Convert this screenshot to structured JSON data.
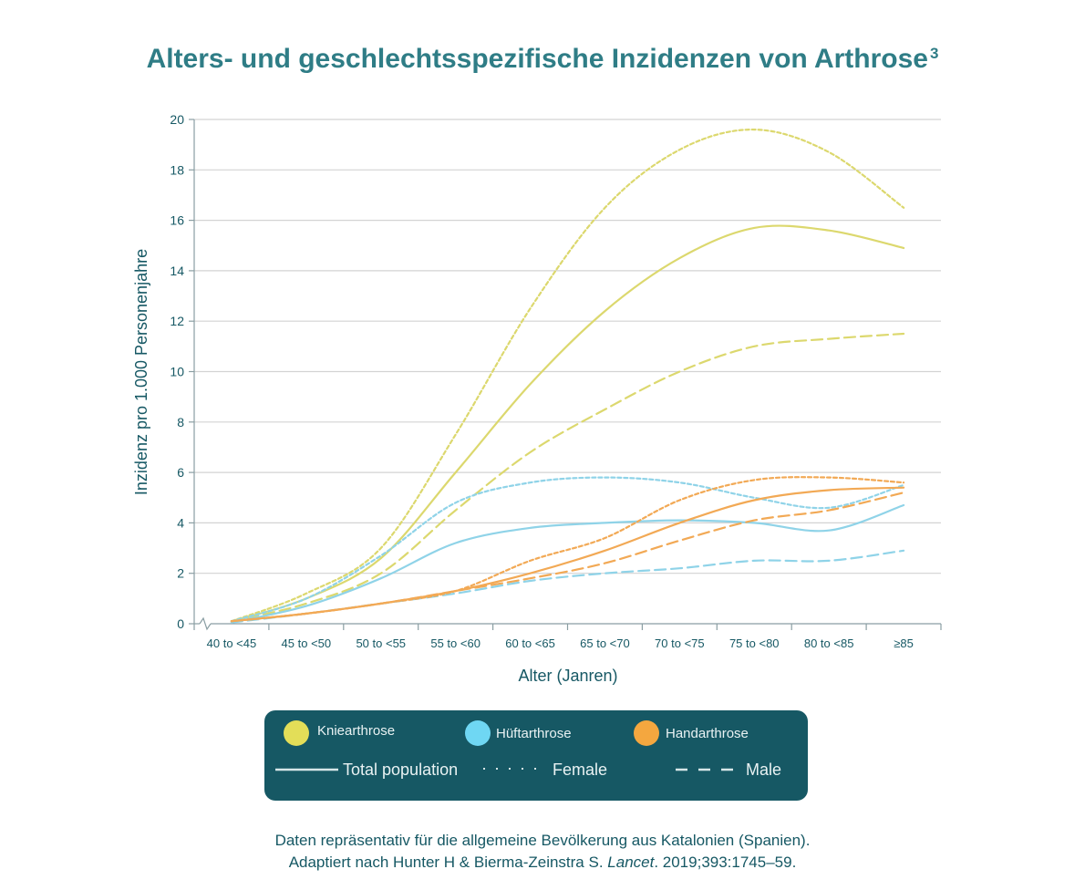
{
  "title": "Alters- und geschlechtsspezifische Inzidenzen von Arthrose",
  "title_superscript": "3",
  "chart_data": {
    "type": "line",
    "categories": [
      "40 to <45",
      "45 to <50",
      "50 to <55",
      "55 to <60",
      "60 to <65",
      "65 to <70",
      "70 to <75",
      "75 to <80",
      "80 to <85",
      "≥85"
    ],
    "xlabel": "Alter (Janren)",
    "ylabel": "Inzidenz pro 1.000 Personenjahre",
    "ylim": [
      0,
      20
    ],
    "yticks": [
      0,
      2,
      4,
      6,
      8,
      10,
      12,
      14,
      16,
      18,
      20
    ],
    "grid": true,
    "series": [
      {
        "group": "knee",
        "dash": "female",
        "color": "#dcd86e",
        "values": [
          0.1,
          1.2,
          3.0,
          7.5,
          12.5,
          16.5,
          18.8,
          19.6,
          18.7,
          16.5
        ]
      },
      {
        "group": "knee",
        "dash": "total",
        "color": "#dcd86e",
        "values": [
          0.1,
          1.0,
          2.6,
          6.0,
          9.5,
          12.4,
          14.5,
          15.7,
          15.6,
          14.9
        ]
      },
      {
        "group": "knee",
        "dash": "male",
        "color": "#dcd86e",
        "values": [
          0.1,
          0.8,
          2.0,
          4.5,
          6.8,
          8.5,
          10.0,
          11.0,
          11.3,
          11.5
        ]
      },
      {
        "group": "hip",
        "dash": "female",
        "color": "#8fd3e8",
        "values": [
          0.1,
          1.0,
          2.7,
          4.8,
          5.6,
          5.8,
          5.6,
          5.0,
          4.6,
          5.5
        ]
      },
      {
        "group": "hip",
        "dash": "total",
        "color": "#8fd3e8",
        "values": [
          0.05,
          0.7,
          1.8,
          3.2,
          3.8,
          4.0,
          4.1,
          4.0,
          3.7,
          4.7
        ]
      },
      {
        "group": "hip",
        "dash": "male",
        "color": "#8fd3e8",
        "values": [
          0.05,
          0.4,
          0.8,
          1.2,
          1.7,
          2.0,
          2.2,
          2.5,
          2.5,
          2.9
        ]
      },
      {
        "group": "hand",
        "dash": "female",
        "color": "#f2a955",
        "values": [
          0.1,
          0.4,
          0.8,
          1.3,
          2.5,
          3.4,
          4.9,
          5.7,
          5.8,
          5.6
        ]
      },
      {
        "group": "hand",
        "dash": "total",
        "color": "#f2a955",
        "values": [
          0.1,
          0.4,
          0.8,
          1.3,
          2.0,
          2.9,
          4.0,
          4.9,
          5.3,
          5.4
        ]
      },
      {
        "group": "hand",
        "dash": "male",
        "color": "#f2a955",
        "values": [
          0.1,
          0.4,
          0.8,
          1.3,
          1.8,
          2.4,
          3.3,
          4.1,
          4.5,
          5.2
        ]
      }
    ]
  },
  "legend": {
    "knee_label": "Kniearthrose",
    "hip_label": "Hüftarthrose",
    "hand_label": "Handarthrose",
    "total_label": "Total population",
    "female_label": "Female",
    "male_label": "Male",
    "knee_color": "#e3de58",
    "hip_color": "#6fd7f3",
    "hand_color": "#f4a73f"
  },
  "footnote": {
    "line1": "Daten repräsentativ für die allgemeine Bevölkerung aus Katalonien (Spanien).",
    "line2_pre": "Adaptiert nach Hunter H & Bierma-Zeinstra S. ",
    "line2_journal": "Lancet",
    "line2_post": ". 2019;393:1745–59."
  }
}
